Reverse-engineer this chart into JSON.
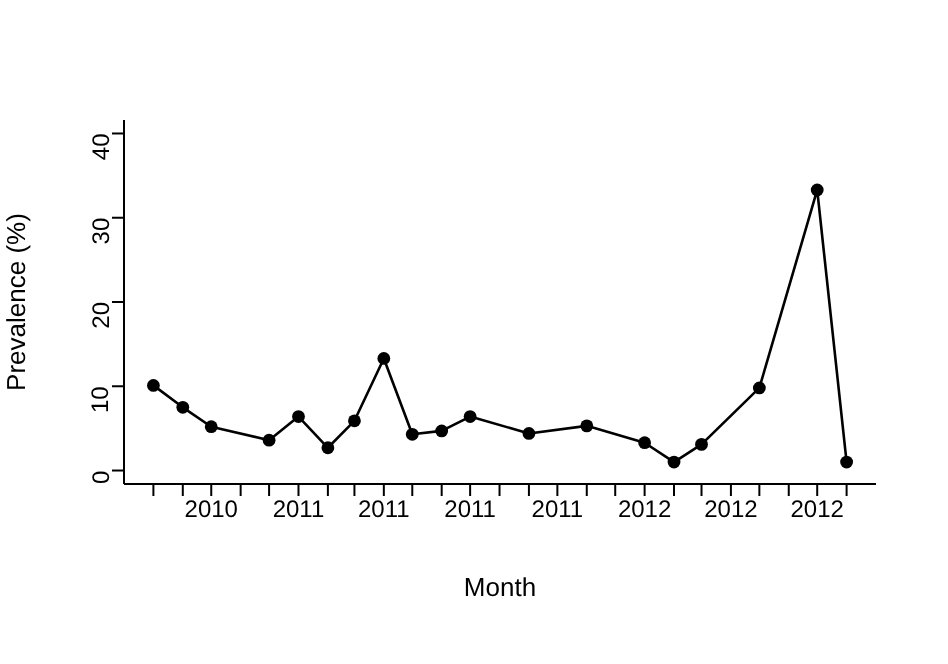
{
  "chart_data": {
    "type": "line",
    "xlabel": "Month",
    "ylabel": "Prevalence (%)",
    "x": [
      "2010-08",
      "2010-09",
      "2010-10",
      "2010-12",
      "2011-01",
      "2011-02",
      "2011-03",
      "2011-04",
      "2011-05",
      "2011-06",
      "2011-07",
      "2011-09",
      "2011-11",
      "2012-01",
      "2012-02",
      "2012-03",
      "2012-05",
      "2012-07",
      "2012-08"
    ],
    "values": [
      10.1,
      7.5,
      5.2,
      3.6,
      6.4,
      2.7,
      5.9,
      13.3,
      4.3,
      4.7,
      6.4,
      4.4,
      5.3,
      3.3,
      1.0,
      3.1,
      9.8,
      33.3,
      1.0
    ],
    "color": "#000000",
    "marker": "circle",
    "line_style": "solid",
    "grid": false,
    "xlim": [
      "2010-07",
      "2012-09"
    ],
    "xticks": [
      {
        "value": "2010-08",
        "label": null
      },
      {
        "value": "2010-09",
        "label": null
      },
      {
        "value": "2010-10",
        "label": "2010"
      },
      {
        "value": "2010-11",
        "label": null
      },
      {
        "value": "2010-12",
        "label": null
      },
      {
        "value": "2011-01",
        "label": "2011"
      },
      {
        "value": "2011-02",
        "label": null
      },
      {
        "value": "2011-03",
        "label": null
      },
      {
        "value": "2011-04",
        "label": "2011"
      },
      {
        "value": "2011-05",
        "label": null
      },
      {
        "value": "2011-06",
        "label": null
      },
      {
        "value": "2011-07",
        "label": "2011"
      },
      {
        "value": "2011-08",
        "label": null
      },
      {
        "value": "2011-09",
        "label": null
      },
      {
        "value": "2011-10",
        "label": "2011"
      },
      {
        "value": "2011-11",
        "label": null
      },
      {
        "value": "2011-12",
        "label": null
      },
      {
        "value": "2012-01",
        "label": "2012"
      },
      {
        "value": "2012-02",
        "label": null
      },
      {
        "value": "2012-03",
        "label": null
      },
      {
        "value": "2012-04",
        "label": "2012"
      },
      {
        "value": "2012-05",
        "label": null
      },
      {
        "value": "2012-06",
        "label": null
      },
      {
        "value": "2012-07",
        "label": "2012"
      },
      {
        "value": "2012-08",
        "label": null
      }
    ],
    "ylim": [
      -1.6,
      41.6
    ],
    "yticks": [
      0,
      10,
      20,
      30,
      40
    ]
  }
}
